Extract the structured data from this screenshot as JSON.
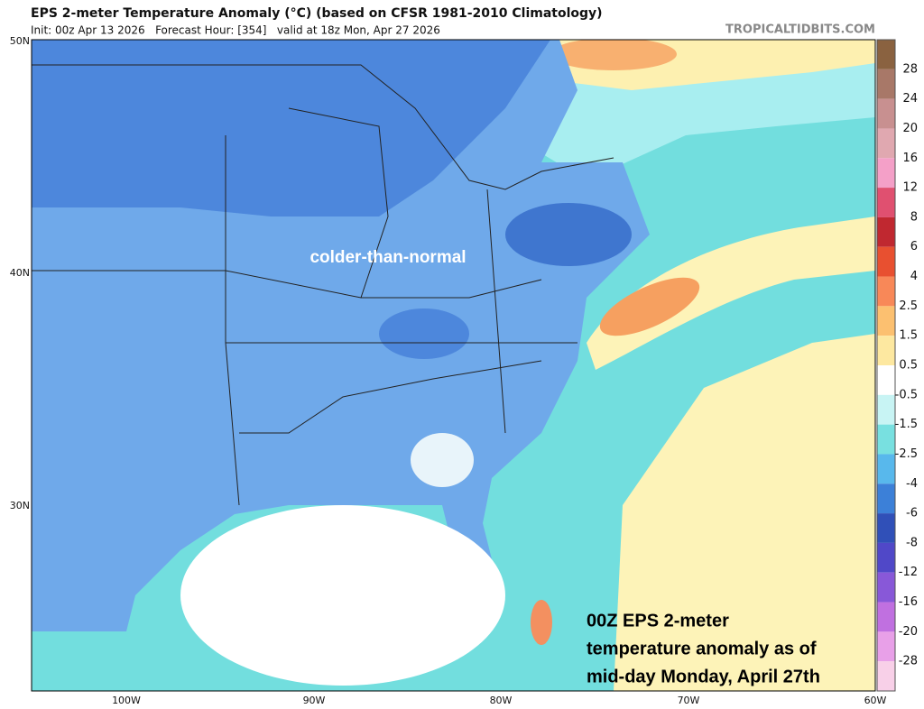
{
  "header": {
    "title": "EPS 2-meter Temperature Anomaly (°C) (based on CFSR 1981-2010 Climatology)",
    "subtitle": "Init: 00z Apr 13 2026   Forecast Hour: [354]   valid at 18z Mon, Apr 27 2026",
    "watermark": "TROPICALTIDBITS.COM"
  },
  "map": {
    "latitude_labels": [
      "50N",
      "40N",
      "30N"
    ],
    "longitude_labels": [
      "100W",
      "90W",
      "80W",
      "70W",
      "60W"
    ],
    "region_label": "colder-than-normal",
    "caption": [
      "00Z EPS 2-meter",
      "temperature anomaly as of",
      "mid-day Monday, April 27th"
    ]
  },
  "legend": {
    "labels": [
      "28",
      "24",
      "20",
      "16",
      "12",
      "8",
      "6",
      "4",
      "2.5",
      "1.5",
      "0.5",
      "-0.5",
      "-1.5",
      "-2.5",
      "-4",
      "-6",
      "-8",
      "-12",
      "-16",
      "-20",
      "-28"
    ]
  }
}
